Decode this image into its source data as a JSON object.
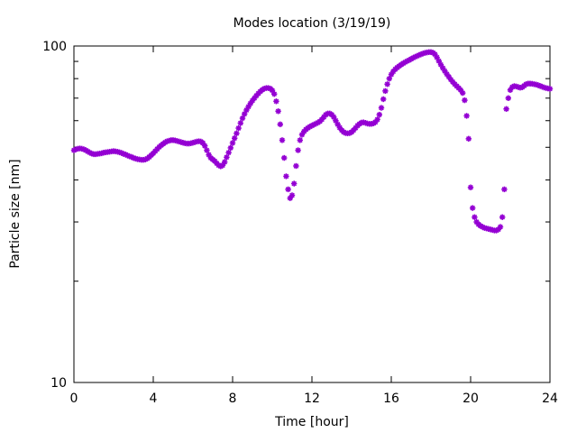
{
  "chart_data": {
    "type": "scatter",
    "title": "Modes location (3/19/19)",
    "xlabel": "Time [hour]",
    "ylabel": "Particle size [nm]",
    "xlim": [
      0,
      24
    ],
    "ylim": [
      10,
      100
    ],
    "yscale": "log",
    "grid": false,
    "x_ticks": [
      0,
      4,
      8,
      12,
      16,
      20,
      24
    ],
    "y_ticks": [
      10,
      100
    ],
    "x_tick_labels": [
      "0",
      "4",
      "8",
      "12",
      "16",
      "20",
      "24"
    ],
    "y_tick_labels": [
      "10",
      "100"
    ],
    "series": [
      {
        "color": "#9400d3",
        "marker": "asterisk",
        "points": [
          [
            0.0,
            49
          ],
          [
            0.1,
            49.3
          ],
          [
            0.2,
            49.5
          ],
          [
            0.3,
            49.6
          ],
          [
            0.4,
            49.5
          ],
          [
            0.5,
            49.3
          ],
          [
            0.6,
            49
          ],
          [
            0.7,
            48.6
          ],
          [
            0.8,
            48.2
          ],
          [
            0.9,
            47.9
          ],
          [
            1.0,
            47.7
          ],
          [
            1.1,
            47.7
          ],
          [
            1.2,
            47.8
          ],
          [
            1.3,
            47.9
          ],
          [
            1.4,
            48
          ],
          [
            1.5,
            48.2
          ],
          [
            1.6,
            48.3
          ],
          [
            1.7,
            48.4
          ],
          [
            1.8,
            48.5
          ],
          [
            1.9,
            48.6
          ],
          [
            2.0,
            48.7
          ],
          [
            2.1,
            48.6
          ],
          [
            2.2,
            48.5
          ],
          [
            2.3,
            48.3
          ],
          [
            2.4,
            48.1
          ],
          [
            2.5,
            47.8
          ],
          [
            2.6,
            47.6
          ],
          [
            2.7,
            47.3
          ],
          [
            2.8,
            47
          ],
          [
            2.9,
            46.8
          ],
          [
            3.0,
            46.5
          ],
          [
            3.1,
            46.3
          ],
          [
            3.2,
            46.1
          ],
          [
            3.3,
            46
          ],
          [
            3.4,
            45.9
          ],
          [
            3.5,
            45.9
          ],
          [
            3.6,
            46
          ],
          [
            3.7,
            46.3
          ],
          [
            3.8,
            46.8
          ],
          [
            3.9,
            47.4
          ],
          [
            4.0,
            48
          ],
          [
            4.1,
            48.7
          ],
          [
            4.2,
            49.4
          ],
          [
            4.3,
            50.1
          ],
          [
            4.4,
            50.7
          ],
          [
            4.5,
            51.2
          ],
          [
            4.6,
            51.7
          ],
          [
            4.7,
            52.1
          ],
          [
            4.8,
            52.3
          ],
          [
            4.9,
            52.5
          ],
          [
            5.0,
            52.5
          ],
          [
            5.1,
            52.4
          ],
          [
            5.2,
            52.2
          ],
          [
            5.3,
            52
          ],
          [
            5.4,
            51.8
          ],
          [
            5.5,
            51.6
          ],
          [
            5.6,
            51.4
          ],
          [
            5.7,
            51.3
          ],
          [
            5.8,
            51.3
          ],
          [
            5.9,
            51.4
          ],
          [
            6.0,
            51.6
          ],
          [
            6.1,
            51.8
          ],
          [
            6.2,
            52
          ],
          [
            6.3,
            52.1
          ],
          [
            6.4,
            52
          ],
          [
            6.5,
            51.5
          ],
          [
            6.6,
            50.5
          ],
          [
            6.7,
            49
          ],
          [
            6.8,
            47.5
          ],
          [
            6.9,
            46.5
          ],
          [
            7.0,
            46
          ],
          [
            7.1,
            45.5
          ],
          [
            7.2,
            44.8
          ],
          [
            7.3,
            44.2
          ],
          [
            7.4,
            43.9
          ],
          [
            7.5,
            44.2
          ],
          [
            7.6,
            45.2
          ],
          [
            7.7,
            46.7
          ],
          [
            7.8,
            48.2
          ],
          [
            7.9,
            49.8
          ],
          [
            8.0,
            51.5
          ],
          [
            8.1,
            53.2
          ],
          [
            8.2,
            55
          ],
          [
            8.3,
            57
          ],
          [
            8.4,
            59
          ],
          [
            8.5,
            61
          ],
          [
            8.6,
            62.8
          ],
          [
            8.7,
            64.5
          ],
          [
            8.8,
            66
          ],
          [
            8.9,
            67.5
          ],
          [
            9.0,
            68.8
          ],
          [
            9.1,
            70
          ],
          [
            9.2,
            71.2
          ],
          [
            9.3,
            72.3
          ],
          [
            9.4,
            73.3
          ],
          [
            9.5,
            74.1
          ],
          [
            9.6,
            74.7
          ],
          [
            9.7,
            75
          ],
          [
            9.8,
            75
          ],
          [
            9.9,
            74.7
          ],
          [
            10.0,
            73.8
          ],
          [
            10.1,
            72
          ],
          [
            10.2,
            68.5
          ],
          [
            10.3,
            64
          ],
          [
            10.4,
            58.5
          ],
          [
            10.5,
            52.5
          ],
          [
            10.6,
            46.5
          ],
          [
            10.7,
            41
          ],
          [
            10.8,
            37.5
          ],
          [
            10.9,
            35.3
          ],
          [
            11.0,
            36
          ],
          [
            11.1,
            39
          ],
          [
            11.2,
            44
          ],
          [
            11.3,
            49
          ],
          [
            11.4,
            52.5
          ],
          [
            11.5,
            54.5
          ],
          [
            11.6,
            55.7
          ],
          [
            11.7,
            56.5
          ],
          [
            11.8,
            57.1
          ],
          [
            11.9,
            57.6
          ],
          [
            12.0,
            58
          ],
          [
            12.1,
            58.4
          ],
          [
            12.2,
            58.8
          ],
          [
            12.3,
            59.2
          ],
          [
            12.4,
            59.7
          ],
          [
            12.5,
            60.5
          ],
          [
            12.6,
            61.5
          ],
          [
            12.7,
            62.5
          ],
          [
            12.8,
            63
          ],
          [
            12.9,
            63
          ],
          [
            13.0,
            62.5
          ],
          [
            13.1,
            61.5
          ],
          [
            13.2,
            60
          ],
          [
            13.3,
            58.5
          ],
          [
            13.4,
            57.2
          ],
          [
            13.5,
            56.2
          ],
          [
            13.6,
            55.5
          ],
          [
            13.7,
            55.1
          ],
          [
            13.8,
            55
          ],
          [
            13.9,
            55.1
          ],
          [
            14.0,
            55.5
          ],
          [
            14.1,
            56.2
          ],
          [
            14.2,
            57.1
          ],
          [
            14.3,
            58
          ],
          [
            14.4,
            58.7
          ],
          [
            14.5,
            59.2
          ],
          [
            14.6,
            59.3
          ],
          [
            14.7,
            59.1
          ],
          [
            14.8,
            58.8
          ],
          [
            14.9,
            58.7
          ],
          [
            15.0,
            58.7
          ],
          [
            15.1,
            58.9
          ],
          [
            15.2,
            59.4
          ],
          [
            15.3,
            60.5
          ],
          [
            15.4,
            62.5
          ],
          [
            15.5,
            65.5
          ],
          [
            15.6,
            69.5
          ],
          [
            15.7,
            73.5
          ],
          [
            15.8,
            77
          ],
          [
            15.9,
            80
          ],
          [
            16.0,
            82.3
          ],
          [
            16.1,
            84
          ],
          [
            16.2,
            85.3
          ],
          [
            16.3,
            86.3
          ],
          [
            16.4,
            87.2
          ],
          [
            16.5,
            88
          ],
          [
            16.6,
            88.8
          ],
          [
            16.7,
            89.5
          ],
          [
            16.8,
            90.2
          ],
          [
            16.9,
            90.8
          ],
          [
            17.0,
            91.5
          ],
          [
            17.1,
            92.2
          ],
          [
            17.2,
            92.8
          ],
          [
            17.3,
            93.4
          ],
          [
            17.4,
            94
          ],
          [
            17.5,
            94.5
          ],
          [
            17.6,
            95
          ],
          [
            17.7,
            95.4
          ],
          [
            17.8,
            95.7
          ],
          [
            17.9,
            95.9
          ],
          [
            18.0,
            95.9
          ],
          [
            18.1,
            95.5
          ],
          [
            18.2,
            94.5
          ],
          [
            18.3,
            92.5
          ],
          [
            18.4,
            90.2
          ],
          [
            18.5,
            88
          ],
          [
            18.6,
            86
          ],
          [
            18.7,
            84.2
          ],
          [
            18.8,
            82.5
          ],
          [
            18.9,
            81
          ],
          [
            19.0,
            79.5
          ],
          [
            19.1,
            78.2
          ],
          [
            19.2,
            77
          ],
          [
            19.3,
            76
          ],
          [
            19.4,
            75
          ],
          [
            19.5,
            74
          ],
          [
            19.6,
            72.5
          ],
          [
            19.7,
            69
          ],
          [
            19.8,
            62
          ],
          [
            19.9,
            53
          ],
          [
            20.0,
            38
          ],
          [
            20.1,
            33
          ],
          [
            20.2,
            31
          ],
          [
            20.3,
            30
          ],
          [
            20.4,
            29.5
          ],
          [
            20.5,
            29.2
          ],
          [
            20.6,
            29
          ],
          [
            20.7,
            28.8
          ],
          [
            20.8,
            28.7
          ],
          [
            20.9,
            28.6
          ],
          [
            21.0,
            28.5
          ],
          [
            21.1,
            28.4
          ],
          [
            21.2,
            28.3
          ],
          [
            21.3,
            28.3
          ],
          [
            21.4,
            28.5
          ],
          [
            21.5,
            29
          ],
          [
            21.6,
            31
          ],
          [
            21.7,
            37.5
          ],
          [
            21.8,
            65
          ],
          [
            21.9,
            70
          ],
          [
            22.0,
            74
          ],
          [
            22.1,
            75.5
          ],
          [
            22.2,
            76
          ],
          [
            22.3,
            75.8
          ],
          [
            22.4,
            75.5
          ],
          [
            22.5,
            75.2
          ],
          [
            22.6,
            75.4
          ],
          [
            22.7,
            76.2
          ],
          [
            22.8,
            77
          ],
          [
            22.9,
            77.3
          ],
          [
            23.0,
            77.3
          ],
          [
            23.1,
            77.2
          ],
          [
            23.2,
            77
          ],
          [
            23.3,
            76.8
          ],
          [
            23.4,
            76.5
          ],
          [
            23.5,
            76.1
          ],
          [
            23.6,
            75.7
          ],
          [
            23.7,
            75.3
          ],
          [
            23.8,
            75
          ],
          [
            23.9,
            74.8
          ],
          [
            24.0,
            74.6
          ]
        ]
      }
    ]
  }
}
